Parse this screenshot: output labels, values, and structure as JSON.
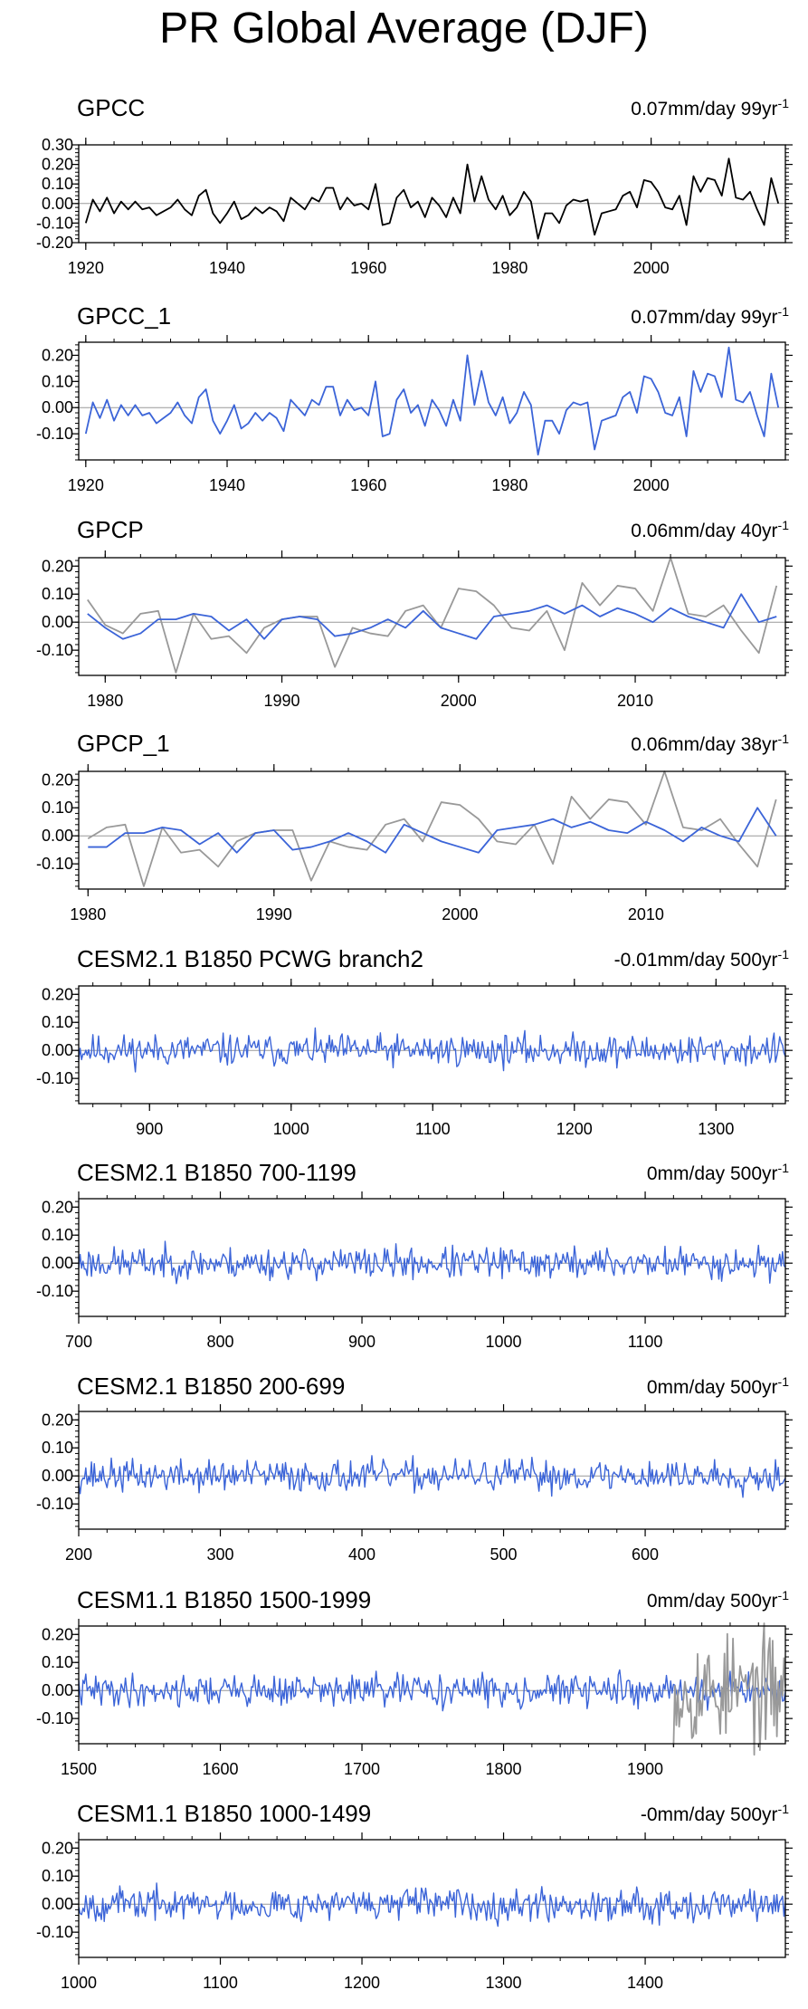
{
  "title": "PR Global Average (DJF)",
  "colors": {
    "obs": "#000000",
    "model": "#3b64d8",
    "reference": "#999999",
    "zero_line": "#999999"
  },
  "chart_data": [
    {
      "type": "line",
      "name": "GPCC",
      "trend": "0.07mm/day 99yr",
      "trend_sup": "-1",
      "xlim": [
        1919,
        2019
      ],
      "ylim": [
        -0.2,
        0.3
      ],
      "xticks": [
        1920,
        1940,
        1960,
        1980,
        2000
      ],
      "yticks": [
        0.3,
        0.2,
        0.1,
        0.0,
        -0.1,
        -0.2
      ],
      "ytick_labels": [
        "0.30",
        "0.20",
        "0.10",
        "0.00",
        "-0.10",
        "-0.20"
      ],
      "series": [
        {
          "name": "GPCC",
          "role": "obs",
          "x_start": 1920,
          "values": [
            -0.1,
            0.02,
            -0.04,
            0.03,
            -0.05,
            0.01,
            -0.03,
            0.01,
            -0.03,
            -0.02,
            -0.06,
            -0.04,
            -0.02,
            0.02,
            -0.03,
            -0.06,
            0.04,
            0.07,
            -0.05,
            -0.1,
            -0.05,
            0.01,
            -0.08,
            -0.06,
            -0.02,
            -0.05,
            -0.02,
            -0.04,
            -0.09,
            0.03,
            0.0,
            -0.03,
            0.03,
            0.01,
            0.08,
            0.08,
            -0.03,
            0.03,
            -0.01,
            0.0,
            -0.03,
            0.1,
            -0.11,
            -0.1,
            0.03,
            0.07,
            -0.02,
            0.01,
            -0.07,
            0.03,
            -0.01,
            -0.07,
            0.03,
            -0.05,
            0.2,
            0.01,
            0.14,
            0.02,
            -0.03,
            0.04,
            -0.06,
            -0.02,
            0.06,
            0.01,
            -0.18,
            -0.05,
            -0.05,
            -0.1,
            -0.01,
            0.02,
            0.01,
            0.02,
            -0.16,
            -0.05,
            -0.04,
            -0.03,
            0.04,
            0.06,
            -0.02,
            0.12,
            0.11,
            0.06,
            -0.02,
            -0.03,
            0.04,
            -0.11,
            0.14,
            0.06,
            0.13,
            0.12,
            0.04,
            0.23,
            0.03,
            0.02,
            0.06,
            -0.03,
            -0.11,
            0.13,
            0.0
          ]
        }
      ]
    },
    {
      "type": "line",
      "name": "GPCC_1",
      "trend": "0.07mm/day 99yr",
      "trend_sup": "-1",
      "xlim": [
        1919,
        2019
      ],
      "ylim": [
        -0.2,
        0.25
      ],
      "xticks": [
        1920,
        1940,
        1960,
        1980,
        2000
      ],
      "yticks": [
        0.2,
        0.1,
        0.0,
        -0.1
      ],
      "ytick_labels": [
        "0.20",
        "0.10",
        "0.00",
        "-0.10"
      ],
      "series": [
        {
          "name": "GPCC_1",
          "role": "model",
          "x_start": 1920,
          "values": [
            -0.1,
            0.02,
            -0.04,
            0.03,
            -0.05,
            0.01,
            -0.03,
            0.01,
            -0.03,
            -0.02,
            -0.06,
            -0.04,
            -0.02,
            0.02,
            -0.03,
            -0.06,
            0.04,
            0.07,
            -0.05,
            -0.1,
            -0.05,
            0.01,
            -0.08,
            -0.06,
            -0.02,
            -0.05,
            -0.02,
            -0.04,
            -0.09,
            0.03,
            0.0,
            -0.03,
            0.03,
            0.01,
            0.08,
            0.08,
            -0.03,
            0.03,
            -0.01,
            0.0,
            -0.03,
            0.1,
            -0.11,
            -0.1,
            0.03,
            0.07,
            -0.02,
            0.01,
            -0.07,
            0.03,
            -0.01,
            -0.07,
            0.03,
            -0.05,
            0.2,
            0.01,
            0.14,
            0.02,
            -0.03,
            0.04,
            -0.06,
            -0.02,
            0.06,
            0.01,
            -0.18,
            -0.05,
            -0.05,
            -0.1,
            -0.01,
            0.02,
            0.01,
            0.02,
            -0.16,
            -0.05,
            -0.04,
            -0.03,
            0.04,
            0.06,
            -0.02,
            0.12,
            0.11,
            0.06,
            -0.02,
            -0.03,
            0.04,
            -0.11,
            0.14,
            0.06,
            0.13,
            0.12,
            0.04,
            0.23,
            0.03,
            0.02,
            0.06,
            -0.03,
            -0.11,
            0.13,
            0.0
          ]
        }
      ]
    },
    {
      "type": "line",
      "name": "GPCP",
      "trend": "0.06mm/day 40yr",
      "trend_sup": "-1",
      "xlim": [
        1978.5,
        2018.5
      ],
      "ylim": [
        -0.19,
        0.23
      ],
      "xticks": [
        1980,
        1990,
        2000,
        2010
      ],
      "yticks": [
        0.2,
        0.1,
        0.0,
        -0.1
      ],
      "ytick_labels": [
        "0.20",
        "0.10",
        "0.00",
        "-0.10"
      ],
      "series": [
        {
          "name": "GPCC",
          "role": "reference",
          "x_start": 1979,
          "values": [
            0.08,
            -0.01,
            -0.04,
            0.03,
            0.04,
            -0.18,
            0.03,
            -0.06,
            -0.05,
            -0.11,
            -0.02,
            0.01,
            0.02,
            0.02,
            -0.16,
            -0.02,
            -0.04,
            -0.05,
            0.04,
            0.06,
            -0.02,
            0.12,
            0.11,
            0.06,
            -0.02,
            -0.03,
            0.04,
            -0.1,
            0.14,
            0.06,
            0.13,
            0.12,
            0.04,
            0.23,
            0.03,
            0.02,
            0.06,
            -0.03,
            -0.11,
            0.13
          ]
        },
        {
          "name": "GPCP",
          "role": "model",
          "x_start": 1979,
          "values": [
            0.03,
            -0.02,
            -0.06,
            -0.04,
            0.01,
            0.01,
            0.03,
            0.02,
            -0.03,
            0.01,
            -0.06,
            0.01,
            0.02,
            0.01,
            -0.05,
            -0.04,
            -0.02,
            0.01,
            -0.02,
            0.04,
            -0.02,
            -0.04,
            -0.06,
            0.02,
            0.03,
            0.04,
            0.06,
            0.03,
            0.06,
            0.02,
            0.05,
            0.03,
            0.0,
            0.05,
            0.02,
            0.0,
            -0.02,
            0.1,
            0.0,
            0.02
          ]
        }
      ]
    },
    {
      "type": "line",
      "name": "GPCP_1",
      "trend": "0.06mm/day 38yr",
      "trend_sup": "-1",
      "xlim": [
        1979.5,
        2017.5
      ],
      "ylim": [
        -0.19,
        0.23
      ],
      "xticks": [
        1980,
        1990,
        2000,
        2010
      ],
      "yticks": [
        0.2,
        0.1,
        0.0,
        -0.1
      ],
      "ytick_labels": [
        "0.20",
        "0.10",
        "0.00",
        "-0.10"
      ],
      "series": [
        {
          "name": "GPCC",
          "role": "reference",
          "x_start": 1980,
          "values": [
            -0.01,
            0.03,
            0.04,
            -0.18,
            0.03,
            -0.06,
            -0.05,
            -0.11,
            -0.02,
            0.01,
            0.02,
            0.02,
            -0.16,
            -0.02,
            -0.04,
            -0.05,
            0.04,
            0.06,
            -0.02,
            0.12,
            0.11,
            0.06,
            -0.02,
            -0.03,
            0.04,
            -0.1,
            0.14,
            0.06,
            0.13,
            0.12,
            0.04,
            0.23,
            0.03,
            0.02,
            0.06,
            -0.03,
            -0.11,
            0.13
          ]
        },
        {
          "name": "GPCP_1",
          "role": "model",
          "x_start": 1980,
          "values": [
            -0.04,
            -0.04,
            0.01,
            0.01,
            0.03,
            0.02,
            -0.03,
            0.01,
            -0.06,
            0.01,
            0.02,
            -0.05,
            -0.04,
            -0.02,
            0.01,
            -0.02,
            -0.06,
            0.04,
            0.01,
            -0.02,
            -0.04,
            -0.06,
            0.02,
            0.03,
            0.04,
            0.06,
            0.03,
            0.05,
            0.02,
            0.01,
            0.05,
            0.02,
            -0.02,
            0.03,
            0.0,
            -0.02,
            0.1,
            0.0
          ]
        }
      ]
    },
    {
      "type": "line",
      "name": "CESM2.1 B1850 PCWG branch2",
      "trend": "-0.01mm/day 500yr",
      "trend_sup": "-1",
      "xlim": [
        850,
        1349
      ],
      "ylim": [
        -0.19,
        0.23
      ],
      "xticks": [
        900,
        1000,
        1100,
        1200,
        1300
      ],
      "yticks": [
        0.2,
        0.1,
        0.0,
        -0.1
      ],
      "ytick_labels": [
        "0.20",
        "0.10",
        "0.00",
        "-0.10"
      ],
      "series": [
        {
          "name": "CESM2.1 B1850 PCWG branch2",
          "role": "model",
          "x_start": 850,
          "count": 500,
          "amplitude": 0.035,
          "seed": 11
        }
      ]
    },
    {
      "type": "line",
      "name": "CESM2.1 B1850 700-1199",
      "trend": "0mm/day 500yr",
      "trend_sup": "-1",
      "xlim": [
        700,
        1199
      ],
      "ylim": [
        -0.19,
        0.23
      ],
      "xticks": [
        700,
        800,
        900,
        1000,
        1100
      ],
      "yticks": [
        0.2,
        0.1,
        0.0,
        -0.1
      ],
      "ytick_labels": [
        "0.20",
        "0.10",
        "0.00",
        "-0.10"
      ],
      "series": [
        {
          "name": "CESM2.1 B1850 700-1199",
          "role": "model",
          "x_start": 700,
          "count": 500,
          "amplitude": 0.035,
          "seed": 23
        }
      ]
    },
    {
      "type": "line",
      "name": "CESM2.1 B1850 200-699",
      "trend": "0mm/day 500yr",
      "trend_sup": "-1",
      "xlim": [
        200,
        699
      ],
      "ylim": [
        -0.19,
        0.23
      ],
      "xticks": [
        200,
        300,
        400,
        500,
        600
      ],
      "yticks": [
        0.2,
        0.1,
        0.0,
        -0.1
      ],
      "ytick_labels": [
        "0.20",
        "0.10",
        "0.00",
        "-0.10"
      ],
      "series": [
        {
          "name": "CESM2.1 B1850 200-699",
          "role": "model",
          "x_start": 200,
          "count": 500,
          "amplitude": 0.035,
          "seed": 37
        }
      ]
    },
    {
      "type": "line",
      "name": "CESM1.1 B1850 1500-1999",
      "trend": "0mm/day 500yr",
      "trend_sup": "-1",
      "xlim": [
        1500,
        1999
      ],
      "ylim": [
        -0.19,
        0.23
      ],
      "xticks": [
        1500,
        1600,
        1700,
        1800,
        1900
      ],
      "yticks": [
        0.2,
        0.1,
        0.0,
        -0.1
      ],
      "ytick_labels": [
        "0.20",
        "0.10",
        "0.00",
        "-0.10"
      ],
      "series": [
        {
          "name": "CESM1.1 B1850 1500-1999",
          "role": "model",
          "x_start": 1500,
          "count": 500,
          "amplitude": 0.035,
          "seed": 41
        },
        {
          "name": "GPCC",
          "role": "reference",
          "x_start": 1920,
          "count": 80,
          "amplitude": 0.12,
          "seed": 53,
          "draw_over": true
        }
      ]
    },
    {
      "type": "line",
      "name": "CESM1.1 B1850 1000-1499",
      "trend": "-0mm/day 500yr",
      "trend_sup": "-1",
      "xlim": [
        1000,
        1499
      ],
      "ylim": [
        -0.19,
        0.23
      ],
      "xticks": [
        1000,
        1100,
        1200,
        1300,
        1400
      ],
      "yticks": [
        0.2,
        0.1,
        0.0,
        -0.1
      ],
      "ytick_labels": [
        "0.20",
        "0.10",
        "0.00",
        "-0.10"
      ],
      "series": [
        {
          "name": "CESM1.1 B1850 1000-1499",
          "role": "model",
          "x_start": 1000,
          "count": 500,
          "amplitude": 0.035,
          "seed": 67
        }
      ]
    }
  ]
}
